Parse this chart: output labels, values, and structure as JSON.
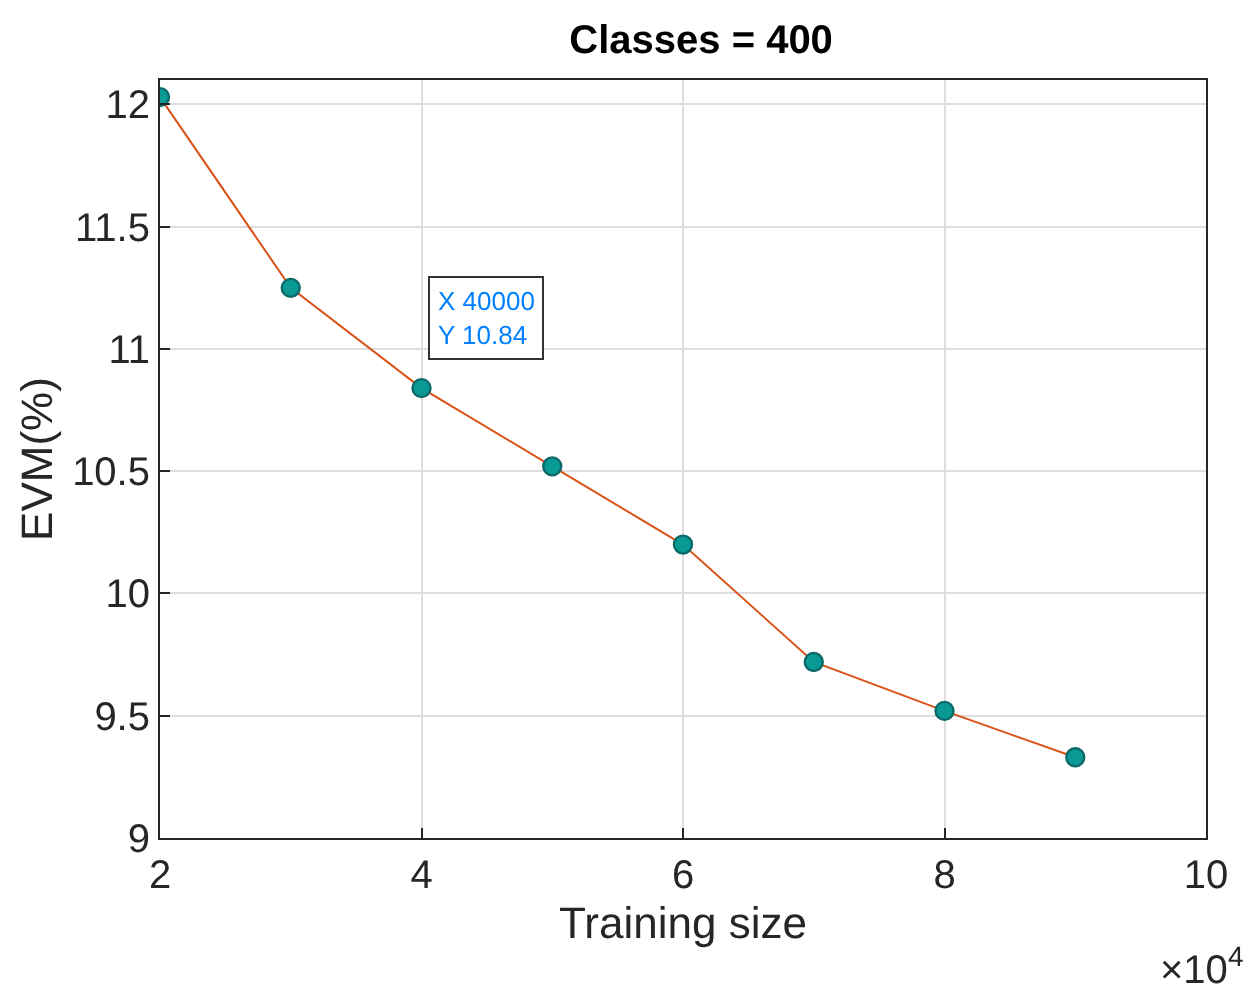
{
  "chart_data": {
    "type": "line",
    "title": "Classes = 400",
    "xlabel": "Training size",
    "ylabel": "EVM(%)",
    "x": [
      2,
      3,
      4,
      5,
      6,
      7,
      8,
      9
    ],
    "series": [
      {
        "color": "#d95319",
        "values": [
          12.03,
          11.25,
          10.84,
          10.52,
          10.2,
          9.72,
          9.52,
          9.33
        ]
      }
    ],
    "xlim": [
      2,
      10
    ],
    "xticks": [
      2,
      4,
      6,
      8,
      10
    ],
    "ylim": [
      9,
      12.1
    ],
    "yticks": [
      9,
      9.5,
      10,
      10.5,
      11,
      11.5,
      12
    ],
    "grid": true,
    "marker": "circle",
    "line_style": "solid",
    "annotations": [
      "×10$^{4}$",
      {
        "text": "X 40000\nY 10.84",
        "x": 4,
        "y": 10.84
      }
    ]
  }
}
